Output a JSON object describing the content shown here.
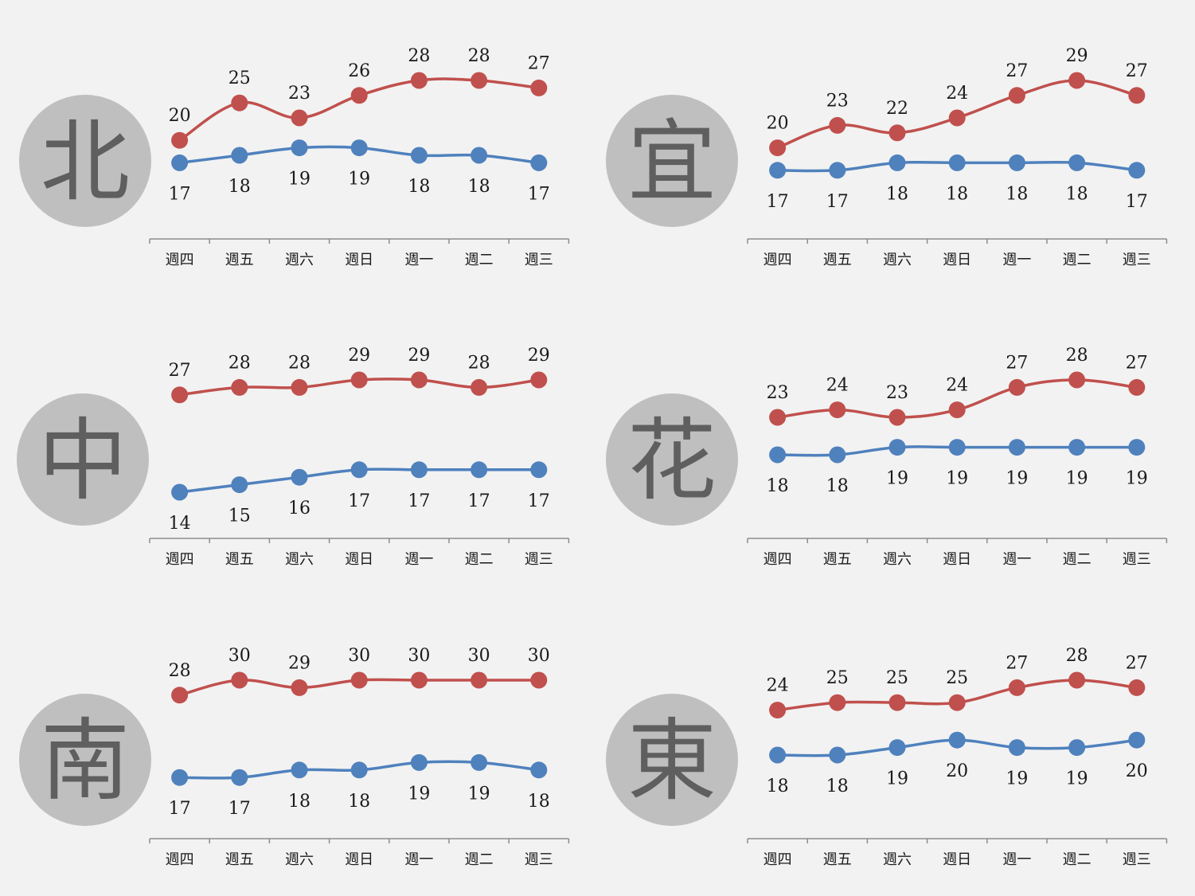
{
  "chart_data": [
    {
      "type": "line",
      "title": "北",
      "categories": [
        "週四",
        "週五",
        "週六",
        "週日",
        "週一",
        "週二",
        "週三"
      ],
      "series": [
        {
          "color": "#c0504d",
          "values": [
            20,
            25,
            23,
            26,
            28,
            28,
            27
          ]
        },
        {
          "color": "#4f81bd",
          "values": [
            17,
            18,
            19,
            19,
            18,
            18,
            17
          ]
        }
      ]
    },
    {
      "type": "line",
      "title": "宜",
      "categories": [
        "週四",
        "週五",
        "週六",
        "週日",
        "週一",
        "週二",
        "週三"
      ],
      "series": [
        {
          "color": "#c0504d",
          "values": [
            20,
            23,
            22,
            24,
            27,
            29,
            27
          ]
        },
        {
          "color": "#4f81bd",
          "values": [
            17,
            17,
            18,
            18,
            18,
            18,
            17
          ]
        }
      ]
    },
    {
      "type": "line",
      "title": "中",
      "categories": [
        "週四",
        "週五",
        "週六",
        "週日",
        "週一",
        "週二",
        "週三"
      ],
      "series": [
        {
          "color": "#c0504d",
          "values": [
            27,
            28,
            28,
            29,
            29,
            28,
            29
          ]
        },
        {
          "color": "#4f81bd",
          "values": [
            14,
            15,
            16,
            17,
            17,
            17,
            17
          ]
        }
      ]
    },
    {
      "type": "line",
      "title": "花",
      "categories": [
        "週四",
        "週五",
        "週六",
        "週日",
        "週一",
        "週二",
        "週三"
      ],
      "series": [
        {
          "color": "#c0504d",
          "values": [
            23,
            24,
            23,
            24,
            27,
            28,
            27
          ]
        },
        {
          "color": "#4f81bd",
          "values": [
            18,
            18,
            19,
            19,
            19,
            19,
            19
          ]
        }
      ]
    },
    {
      "type": "line",
      "title": "南",
      "categories": [
        "週四",
        "週五",
        "週六",
        "週日",
        "週一",
        "週二",
        "週三"
      ],
      "series": [
        {
          "color": "#c0504d",
          "values": [
            28,
            30,
            29,
            30,
            30,
            30,
            30
          ]
        },
        {
          "color": "#4f81bd",
          "values": [
            17,
            17,
            18,
            18,
            19,
            19,
            18
          ]
        }
      ]
    },
    {
      "type": "line",
      "title": "東",
      "categories": [
        "週四",
        "週五",
        "週六",
        "週日",
        "週一",
        "週二",
        "週三"
      ],
      "series": [
        {
          "color": "#c0504d",
          "values": [
            24,
            25,
            25,
            25,
            27,
            28,
            27
          ]
        },
        {
          "color": "#4f81bd",
          "values": [
            18,
            18,
            19,
            20,
            19,
            19,
            20
          ]
        }
      ]
    }
  ]
}
